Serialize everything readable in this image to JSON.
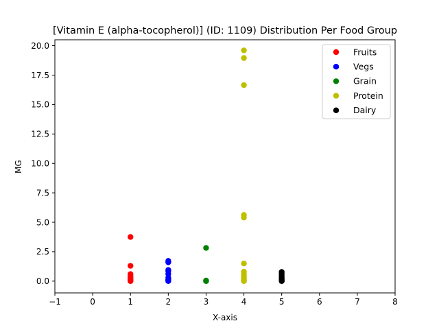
{
  "chart_data": {
    "type": "scatter",
    "title": "[Vitamin E (alpha-tocopherol)] (ID: 1109) Distribution Per Food Group",
    "xlabel": "X-axis",
    "ylabel": "MG",
    "xlim": [
      -1,
      8
    ],
    "ylim": [
      -1,
      20.5
    ],
    "xticks": [
      "-1",
      "0",
      "1",
      "2",
      "3",
      "4",
      "5",
      "6",
      "7",
      "8"
    ],
    "yticks": [
      "0.0",
      "2.5",
      "5.0",
      "7.5",
      "10.0",
      "12.5",
      "15.0",
      "17.5",
      "20.0"
    ],
    "grid": false,
    "legend_position": "top-right",
    "series": [
      {
        "name": "Fruits",
        "color": "#ff0000",
        "points": [
          [
            1,
            3.75
          ],
          [
            1,
            1.3
          ],
          [
            1,
            0.6
          ],
          [
            1,
            0.45
          ],
          [
            1,
            0.35
          ],
          [
            1,
            0.25
          ],
          [
            1,
            0.15
          ],
          [
            1,
            0.1
          ],
          [
            1,
            0.05
          ],
          [
            1,
            0.02
          ],
          [
            1,
            0.0
          ]
        ]
      },
      {
        "name": "Vegs",
        "color": "#0000ff",
        "points": [
          [
            2,
            1.72
          ],
          [
            2,
            1.6
          ],
          [
            2,
            0.95
          ],
          [
            2,
            0.85
          ],
          [
            2,
            0.6
          ],
          [
            2,
            0.3
          ],
          [
            2,
            0.15
          ],
          [
            2,
            0.1
          ],
          [
            2,
            0.05
          ],
          [
            2,
            0.0
          ]
        ]
      },
      {
        "name": "Grain",
        "color": "#008000",
        "points": [
          [
            3,
            2.82
          ],
          [
            3,
            0.05
          ],
          [
            3,
            0.02
          ],
          [
            3,
            0.0
          ]
        ]
      },
      {
        "name": "Protein",
        "color": "#bfbf00",
        "points": [
          [
            4,
            19.6
          ],
          [
            4,
            18.95
          ],
          [
            4,
            16.65
          ],
          [
            4,
            5.62
          ],
          [
            4,
            5.4
          ],
          [
            4,
            1.5
          ],
          [
            4,
            0.8
          ],
          [
            4,
            0.6
          ],
          [
            4,
            0.45
          ],
          [
            4,
            0.3
          ],
          [
            4,
            0.2
          ],
          [
            4,
            0.1
          ],
          [
            4,
            0.05
          ],
          [
            4,
            0.0
          ]
        ]
      },
      {
        "name": "Dairy",
        "color": "#000000",
        "points": [
          [
            5,
            0.78
          ],
          [
            5,
            0.65
          ],
          [
            5,
            0.5
          ],
          [
            5,
            0.35
          ],
          [
            5,
            0.25
          ],
          [
            5,
            0.15
          ],
          [
            5,
            0.08
          ],
          [
            5,
            0.02
          ],
          [
            5,
            0.0
          ]
        ]
      }
    ]
  }
}
